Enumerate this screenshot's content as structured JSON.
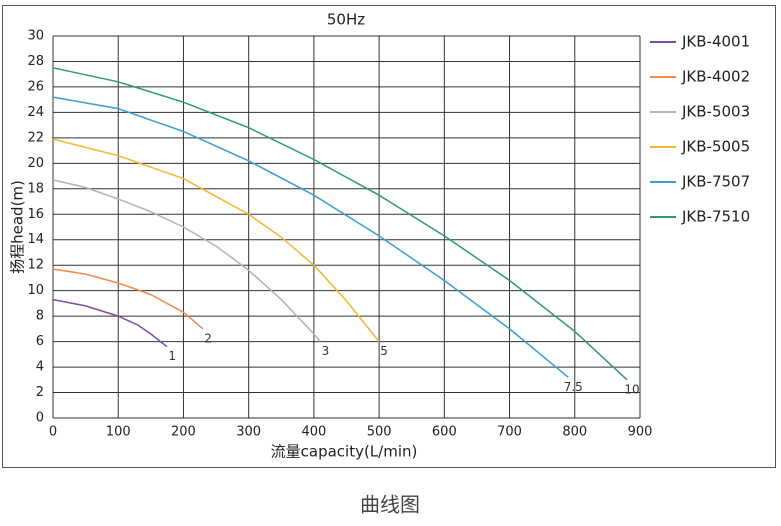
{
  "chart_data": {
    "type": "line",
    "title": "50Hz",
    "x_label": "流量capacity(L/min)",
    "y_label": "扬程head(m)",
    "xlim": [
      0,
      900
    ],
    "xticks": [
      0,
      100,
      200,
      300,
      400,
      500,
      600,
      700,
      800,
      900
    ],
    "ylim": [
      0,
      30
    ],
    "yticks": [
      0,
      2,
      4,
      6,
      8,
      10,
      12,
      14,
      16,
      18,
      20,
      22,
      24,
      26,
      28,
      30
    ],
    "grid": true,
    "legend": "right",
    "series": [
      {
        "name": "JKB-4001",
        "color": "#7a4fa3",
        "label": "1",
        "x": [
          0,
          50,
          100,
          130,
          150,
          175
        ],
        "values": [
          9.3,
          8.8,
          8.0,
          7.3,
          6.6,
          5.6
        ]
      },
      {
        "name": "JKB-4002",
        "color": "#f0894c",
        "label": "2",
        "x": [
          0,
          50,
          100,
          150,
          200,
          230
        ],
        "values": [
          11.7,
          11.3,
          10.6,
          9.7,
          8.3,
          7.0
        ]
      },
      {
        "name": "JKB-5003",
        "color": "#b3b3b3",
        "label": "3",
        "x": [
          0,
          50,
          100,
          150,
          200,
          250,
          300,
          350,
          400,
          410
        ],
        "values": [
          18.7,
          18.1,
          17.2,
          16.2,
          15.0,
          13.5,
          11.6,
          9.3,
          6.6,
          6.0
        ]
      },
      {
        "name": "JKB-5005",
        "color": "#f4b731",
        "label": "5",
        "x": [
          0,
          100,
          200,
          300,
          350,
          400,
          450,
          500
        ],
        "values": [
          21.9,
          20.6,
          18.8,
          16.0,
          14.2,
          12.0,
          9.2,
          6.0
        ]
      },
      {
        "name": "JKB-7507",
        "color": "#3a9fd6",
        "label": "7.5",
        "x": [
          0,
          100,
          200,
          300,
          400,
          500,
          600,
          700,
          790
        ],
        "values": [
          25.2,
          24.3,
          22.5,
          20.2,
          17.5,
          14.3,
          10.8,
          7.0,
          3.2
        ]
      },
      {
        "name": "JKB-7510",
        "color": "#2e9c6a",
        "label": "10",
        "x": [
          0,
          100,
          200,
          300,
          400,
          500,
          600,
          700,
          800,
          880
        ],
        "values": [
          27.5,
          26.4,
          24.8,
          22.8,
          20.3,
          17.5,
          14.3,
          10.8,
          6.8,
          3.0
        ]
      }
    ]
  },
  "caption": "曲线图"
}
